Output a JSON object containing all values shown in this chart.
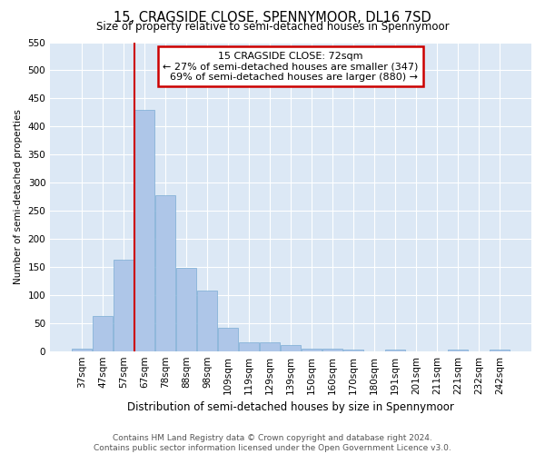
{
  "title": "15, CRAGSIDE CLOSE, SPENNYMOOR, DL16 7SD",
  "subtitle": "Size of property relative to semi-detached houses in Spennymoor",
  "xlabel": "Distribution of semi-detached houses by size in Spennymoor",
  "ylabel": "Number of semi-detached properties",
  "categories": [
    "37sqm",
    "47sqm",
    "57sqm",
    "67sqm",
    "78sqm",
    "88sqm",
    "98sqm",
    "109sqm",
    "119sqm",
    "129sqm",
    "139sqm",
    "150sqm",
    "160sqm",
    "170sqm",
    "180sqm",
    "191sqm",
    "201sqm",
    "211sqm",
    "221sqm",
    "232sqm",
    "242sqm"
  ],
  "values": [
    5,
    62,
    163,
    430,
    278,
    149,
    107,
    42,
    15,
    15,
    10,
    5,
    4,
    2,
    0,
    2,
    0,
    0,
    3,
    0,
    2
  ],
  "bar_color": "#aec6e8",
  "bar_edge_color": "#7aacd4",
  "property_line_bar_index": 3,
  "property_size": "72sqm",
  "property_name": "15 CRAGSIDE CLOSE",
  "pct_smaller": 27,
  "pct_larger": 69,
  "count_smaller": 347,
  "count_larger": 880,
  "ylim": [
    0,
    550
  ],
  "yticks": [
    0,
    50,
    100,
    150,
    200,
    250,
    300,
    350,
    400,
    450,
    500,
    550
  ],
  "annotation_box_color": "#cc0000",
  "line_color": "#cc0000",
  "footer_line1": "Contains HM Land Registry data © Crown copyright and database right 2024.",
  "footer_line2": "Contains public sector information licensed under the Open Government Licence v3.0.",
  "bg_color": "#dce8f5",
  "title_fontsize": 10.5,
  "subtitle_fontsize": 8.5,
  "xlabel_fontsize": 8.5,
  "ylabel_fontsize": 7.5,
  "tick_fontsize": 7.5,
  "footer_fontsize": 6.5,
  "annot_fontsize": 8
}
